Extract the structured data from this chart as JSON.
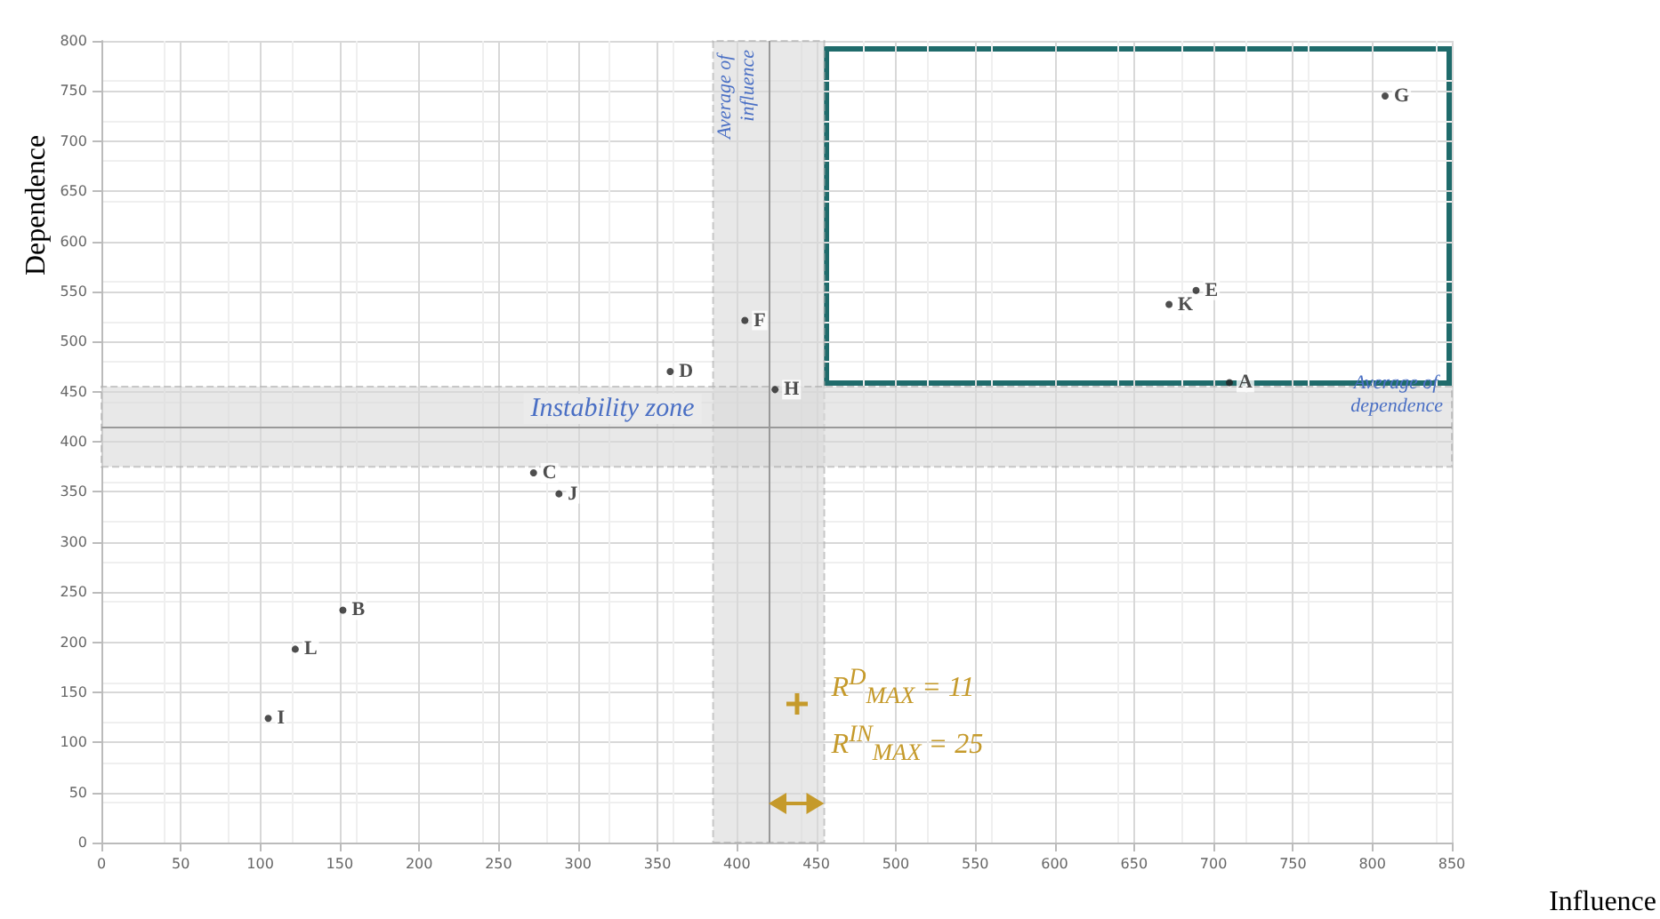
{
  "chart_data": {
    "type": "scatter",
    "xlabel": "Influence",
    "ylabel": "Dependence",
    "xlim": [
      0,
      850
    ],
    "xticks": [
      0,
      50,
      100,
      150,
      200,
      250,
      300,
      350,
      400,
      450,
      500,
      550,
      600,
      650,
      700,
      750,
      800,
      850
    ],
    "ylim": [
      0,
      800
    ],
    "yticks": [
      0,
      50,
      100,
      150,
      200,
      250,
      300,
      350,
      400,
      450,
      500,
      550,
      600,
      650,
      700,
      750,
      800
    ],
    "grid": true,
    "marker": "circle",
    "legend": false,
    "series": [
      {
        "name": "A",
        "color": "#222222",
        "x": [
          710
        ],
        "values": [
          459
        ]
      },
      {
        "name": "B",
        "color": "#222222",
        "x": [
          152
        ],
        "values": [
          232
        ]
      },
      {
        "name": "C",
        "color": "#222222",
        "x": [
          272
        ],
        "values": [
          369
        ]
      },
      {
        "name": "D",
        "color": "#222222",
        "x": [
          358
        ],
        "values": [
          470
        ]
      },
      {
        "name": "E",
        "color": "#222222",
        "x": [
          689
        ],
        "values": [
          551
        ]
      },
      {
        "name": "F",
        "color": "#222222",
        "x": [
          405
        ],
        "values": [
          521
        ]
      },
      {
        "name": "G",
        "color": "#222222",
        "x": [
          808
        ],
        "values": [
          745
        ]
      },
      {
        "name": "H",
        "color": "#222222",
        "x": [
          424
        ],
        "values": [
          452
        ]
      },
      {
        "name": "I",
        "color": "#222222",
        "x": [
          105
        ],
        "values": [
          124
        ]
      },
      {
        "name": "J",
        "color": "#222222",
        "x": [
          288
        ],
        "values": [
          348
        ]
      },
      {
        "name": "K",
        "color": "#222222",
        "x": [
          672
        ],
        "values": [
          537
        ]
      },
      {
        "name": "L",
        "color": "#222222",
        "x": [
          122
        ],
        "values": [
          193
        ]
      }
    ],
    "ref_lines": [
      {
        "axis": "x",
        "value": 420,
        "label": "Average of influence",
        "color": "#999999"
      },
      {
        "axis": "y",
        "value": 415,
        "label": "Average of dependence",
        "color": "#999999"
      }
    ],
    "bands": [
      {
        "axis": "x",
        "from": 385,
        "to": 455,
        "label": null,
        "color": "#d9d9d9"
      },
      {
        "axis": "y",
        "from": 375,
        "to": 455,
        "label": "Instability zone",
        "color": "#d9d9d9"
      }
    ],
    "annotations": [
      "R$^{D}$$_{MAX}$ = 11",
      "R$^{IN}$$_{MAX}$ = 25"
    ]
  }
}
